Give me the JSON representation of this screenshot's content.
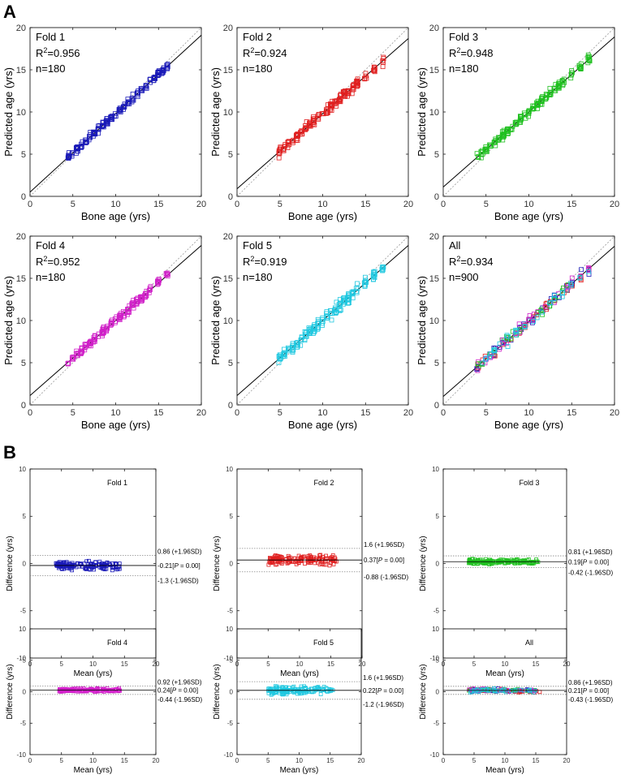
{
  "panel_labels": [
    "A",
    "B"
  ],
  "colors": {
    "Fold 1": "#1a1ab8",
    "Fold 2": "#e02020",
    "Fold 3": "#20c020",
    "Fold 4": "#d020c8",
    "Fold 5": "#20c8e0",
    "line": "#000000",
    "identity": "#999999",
    "limits": "#888888"
  },
  "chart_data": [
    {
      "type": "scatter",
      "name": "Fold 1",
      "panel": "A",
      "title": "Fold 1",
      "r2_prefix": "R",
      "r2_sup": "2",
      "r2_value": "=0.956",
      "n_label": "n=180",
      "xlabel": "Bone age (yrs)",
      "ylabel": "Predicted age (yrs)",
      "xlim": [
        0,
        20
      ],
      "ylim": [
        0,
        20
      ],
      "xticks": [
        0,
        5,
        10,
        15,
        20
      ],
      "yticks": [
        0,
        5,
        10,
        15,
        20
      ],
      "fit": {
        "slope": 0.93,
        "intercept": 0.5
      },
      "x_range": [
        4.2,
        16
      ],
      "x_clusters": [
        4.5,
        5,
        5.5,
        6,
        6.5,
        7,
        7.5,
        8,
        8.5,
        9,
        9.5,
        10,
        10.5,
        11,
        11.5,
        12,
        12.5,
        13,
        13.5,
        14,
        14.5,
        15,
        15.5,
        16
      ],
      "spread": 0.7
    },
    {
      "type": "scatter",
      "name": "Fold 2",
      "panel": "A",
      "title": "Fold 2",
      "r2_prefix": "R",
      "r2_sup": "2",
      "r2_value": "=0.924",
      "n_label": "n=180",
      "xlabel": "Bone age (yrs)",
      "ylabel": "Predicted age (yrs)",
      "xlim": [
        0,
        20
      ],
      "ylim": [
        0,
        20
      ],
      "xticks": [
        0,
        5,
        10,
        15,
        20
      ],
      "yticks": [
        0,
        5,
        10,
        15,
        20
      ],
      "fit": {
        "slope": 0.89,
        "intercept": 0.9
      },
      "x_range": [
        5,
        17
      ],
      "x_clusters": [
        5,
        5.5,
        6,
        6.5,
        7,
        7.5,
        8,
        8.5,
        9,
        9.5,
        10,
        10.5,
        11,
        11.5,
        12,
        12.5,
        13,
        13.5,
        14,
        15,
        16,
        17
      ],
      "spread": 1.0
    },
    {
      "type": "scatter",
      "name": "Fold 3",
      "panel": "A",
      "title": "Fold 3",
      "r2_prefix": "R",
      "r2_sup": "2",
      "r2_value": "=0.948",
      "n_label": "n=180",
      "xlabel": "Bone age (yrs)",
      "ylabel": "Predicted age (yrs)",
      "xlim": [
        0,
        20
      ],
      "ylim": [
        0,
        20
      ],
      "xticks": [
        0,
        5,
        10,
        15,
        20
      ],
      "yticks": [
        0,
        5,
        10,
        15,
        20
      ],
      "fit": {
        "slope": 0.89,
        "intercept": 1.1
      },
      "x_range": [
        4,
        17
      ],
      "x_clusters": [
        4,
        4.5,
        5,
        5.5,
        6,
        6.5,
        7,
        7.5,
        8,
        8.5,
        9,
        9.5,
        10,
        10.5,
        11,
        11.5,
        12,
        12.5,
        13,
        13.5,
        14,
        15,
        16,
        17
      ],
      "spread": 0.8
    },
    {
      "type": "scatter",
      "name": "Fold 4",
      "panel": "A",
      "title": "Fold 4",
      "r2_prefix": "R",
      "r2_sup": "2",
      "r2_value": "=0.952",
      "n_label": "n=180",
      "xlabel": "Bone age (yrs)",
      "ylabel": "Predicted age (yrs)",
      "xlim": [
        0,
        20
      ],
      "ylim": [
        0,
        20
      ],
      "xticks": [
        0,
        5,
        10,
        15,
        20
      ],
      "yticks": [
        0,
        5,
        10,
        15,
        20
      ],
      "fit": {
        "slope": 0.89,
        "intercept": 1.1
      },
      "x_range": [
        4.5,
        16
      ],
      "x_clusters": [
        4.5,
        5,
        5.5,
        6,
        6.5,
        7,
        7.5,
        8,
        8.5,
        9,
        9.5,
        10,
        10.5,
        11,
        11.5,
        12,
        12.5,
        13,
        13.5,
        14,
        15,
        16
      ],
      "spread": 0.75
    },
    {
      "type": "scatter",
      "name": "Fold 5",
      "panel": "A",
      "title": "Fold 5",
      "r2_prefix": "R",
      "r2_sup": "2",
      "r2_value": "=0.919",
      "n_label": "n=180",
      "xlabel": "Bone age (yrs)",
      "ylabel": "Predicted age (yrs)",
      "xlim": [
        0,
        20
      ],
      "ylim": [
        0,
        20
      ],
      "xticks": [
        0,
        5,
        10,
        15,
        20
      ],
      "yticks": [
        0,
        5,
        10,
        15,
        20
      ],
      "fit": {
        "slope": 0.89,
        "intercept": 1.1
      },
      "x_range": [
        5,
        17
      ],
      "x_clusters": [
        5,
        5.5,
        6,
        6.5,
        7,
        7.5,
        8,
        8.5,
        9,
        9.5,
        10,
        10.5,
        11,
        11.5,
        12,
        12.5,
        13,
        13.5,
        14,
        15,
        16,
        17
      ],
      "spread": 1.1
    },
    {
      "type": "scatter",
      "name": "All",
      "panel": "A",
      "title": "All",
      "r2_prefix": "R",
      "r2_sup": "2",
      "r2_value": "=0.934",
      "n_label": "n=900",
      "xlabel": "Bone age (yrs)",
      "ylabel": "Predicted age (yrs)",
      "xlim": [
        0,
        20
      ],
      "ylim": [
        0,
        20
      ],
      "xticks": [
        0,
        5,
        10,
        15,
        20
      ],
      "yticks": [
        0,
        5,
        10,
        15,
        20
      ],
      "fit": {
        "slope": 0.89,
        "intercept": 1.0
      },
      "x_range": [
        4,
        17
      ],
      "x_clusters": [
        4,
        4.5,
        5,
        5.5,
        6,
        6.5,
        7,
        7.5,
        8,
        8.5,
        9,
        9.5,
        10,
        10.5,
        11,
        11.5,
        12,
        12.5,
        13,
        13.5,
        14,
        14.5,
        15,
        16,
        17
      ],
      "spread": 1.0
    },
    {
      "type": "scatter",
      "name": "Fold 1",
      "panel": "B",
      "title": "Fold 1",
      "xlabel": "Mean (yrs)",
      "ylabel": "Difference (yrs)",
      "xlim": [
        0,
        20
      ],
      "ylim": [
        -10,
        10
      ],
      "xticks": [
        0,
        5,
        10,
        15,
        20
      ],
      "yticks": [
        -10,
        -5,
        0,
        5,
        10
      ],
      "upper": 0.86,
      "mean": -0.21,
      "lower": -1.3,
      "upper_label": "0.86 (+1.96SD)",
      "mean_label_a": "-0.21[",
      "mean_label_p": "P",
      "mean_label_b": " = 0.00]",
      "lower_label": "-1.3 (-1.96SD)",
      "x_range": [
        4,
        16
      ]
    },
    {
      "type": "scatter",
      "name": "Fold 2",
      "panel": "B",
      "title": "Fold 2",
      "xlabel": "Mean (yrs)",
      "ylabel": "Difference (yrs)",
      "xlim": [
        0,
        20
      ],
      "ylim": [
        -10,
        10
      ],
      "xticks": [
        0,
        5,
        10,
        15,
        20
      ],
      "yticks": [
        -10,
        -5,
        0,
        5,
        10
      ],
      "upper": 1.6,
      "mean": 0.37,
      "lower": -0.88,
      "upper_label": "1.6 (+1.96SD)",
      "mean_label_a": "0.37[",
      "mean_label_p": "P",
      "mean_label_b": " = 0.00]",
      "lower_label": "-0.88 (-1.96SD)",
      "x_range": [
        5,
        17.5
      ]
    },
    {
      "type": "scatter",
      "name": "Fold 3",
      "panel": "B",
      "title": "Fold 3",
      "xlabel": "Mean (yrs)",
      "ylabel": "Difference (yrs)",
      "xlim": [
        0,
        20
      ],
      "ylim": [
        -10,
        10
      ],
      "xticks": [
        0,
        5,
        10,
        15,
        20
      ],
      "yticks": [
        -10,
        -5,
        0,
        5,
        10
      ],
      "upper": 0.81,
      "mean": 0.19,
      "lower": -0.42,
      "upper_label": "0.81 (+1.96SD)",
      "mean_label_a": "0.19[",
      "mean_label_p": "P",
      "mean_label_b": " = 0.00]",
      "lower_label": "-0.42 (-1.96SD)",
      "x_range": [
        4,
        17
      ]
    },
    {
      "type": "scatter",
      "name": "Fold 4",
      "panel": "B",
      "title": "Fold 4",
      "xlabel": "Mean (yrs)",
      "ylabel": "Difference (yrs)",
      "xlim": [
        0,
        20
      ],
      "ylim": [
        -10,
        10
      ],
      "xticks": [
        0,
        5,
        10,
        15,
        20
      ],
      "yticks": [
        -10,
        -5,
        0,
        5,
        10
      ],
      "upper": 0.92,
      "mean": 0.24,
      "lower": -0.44,
      "upper_label": "0.92 (+1.96SD)",
      "mean_label_a": "0.24[",
      "mean_label_p": "P",
      "mean_label_b": " = 0.00]",
      "lower_label": "-0.44 (-1.96SD)",
      "x_range": [
        4.5,
        16
      ]
    },
    {
      "type": "scatter",
      "name": "Fold 5",
      "panel": "B",
      "title": "Fold 5",
      "xlabel": "Mean (yrs)",
      "ylabel": "Difference (yrs)",
      "xlim": [
        0,
        20
      ],
      "ylim": [
        -10,
        10
      ],
      "xticks": [
        0,
        5,
        10,
        15,
        20
      ],
      "yticks": [
        -10,
        -5,
        0,
        5,
        10
      ],
      "upper": 1.6,
      "mean": 0.22,
      "lower": -1.2,
      "upper_label": "1.6 (+1.96SD)",
      "mean_label_a": "0.22[",
      "mean_label_p": "P",
      "mean_label_b": " = 0.00]",
      "lower_label": "-1.2 (-1.96SD)",
      "x_range": [
        5,
        17
      ]
    },
    {
      "type": "scatter",
      "name": "All",
      "panel": "B",
      "title": "All",
      "xlabel": "Mean (yrs)",
      "ylabel": "Difference (yrs)",
      "xlim": [
        0,
        20
      ],
      "ylim": [
        -10,
        10
      ],
      "xticks": [
        0,
        5,
        10,
        15,
        20
      ],
      "yticks": [
        -10,
        -5,
        0,
        5,
        10
      ],
      "upper": 0.86,
      "mean": 0.21,
      "lower": -0.43,
      "upper_label": "0.86 (+1.96SD)",
      "mean_label_a": "0.21[",
      "mean_label_p": "P",
      "mean_label_b": " = 0.00]",
      "lower_label": "-0.43 (-1.96SD)",
      "x_range": [
        4,
        17.5
      ]
    }
  ]
}
